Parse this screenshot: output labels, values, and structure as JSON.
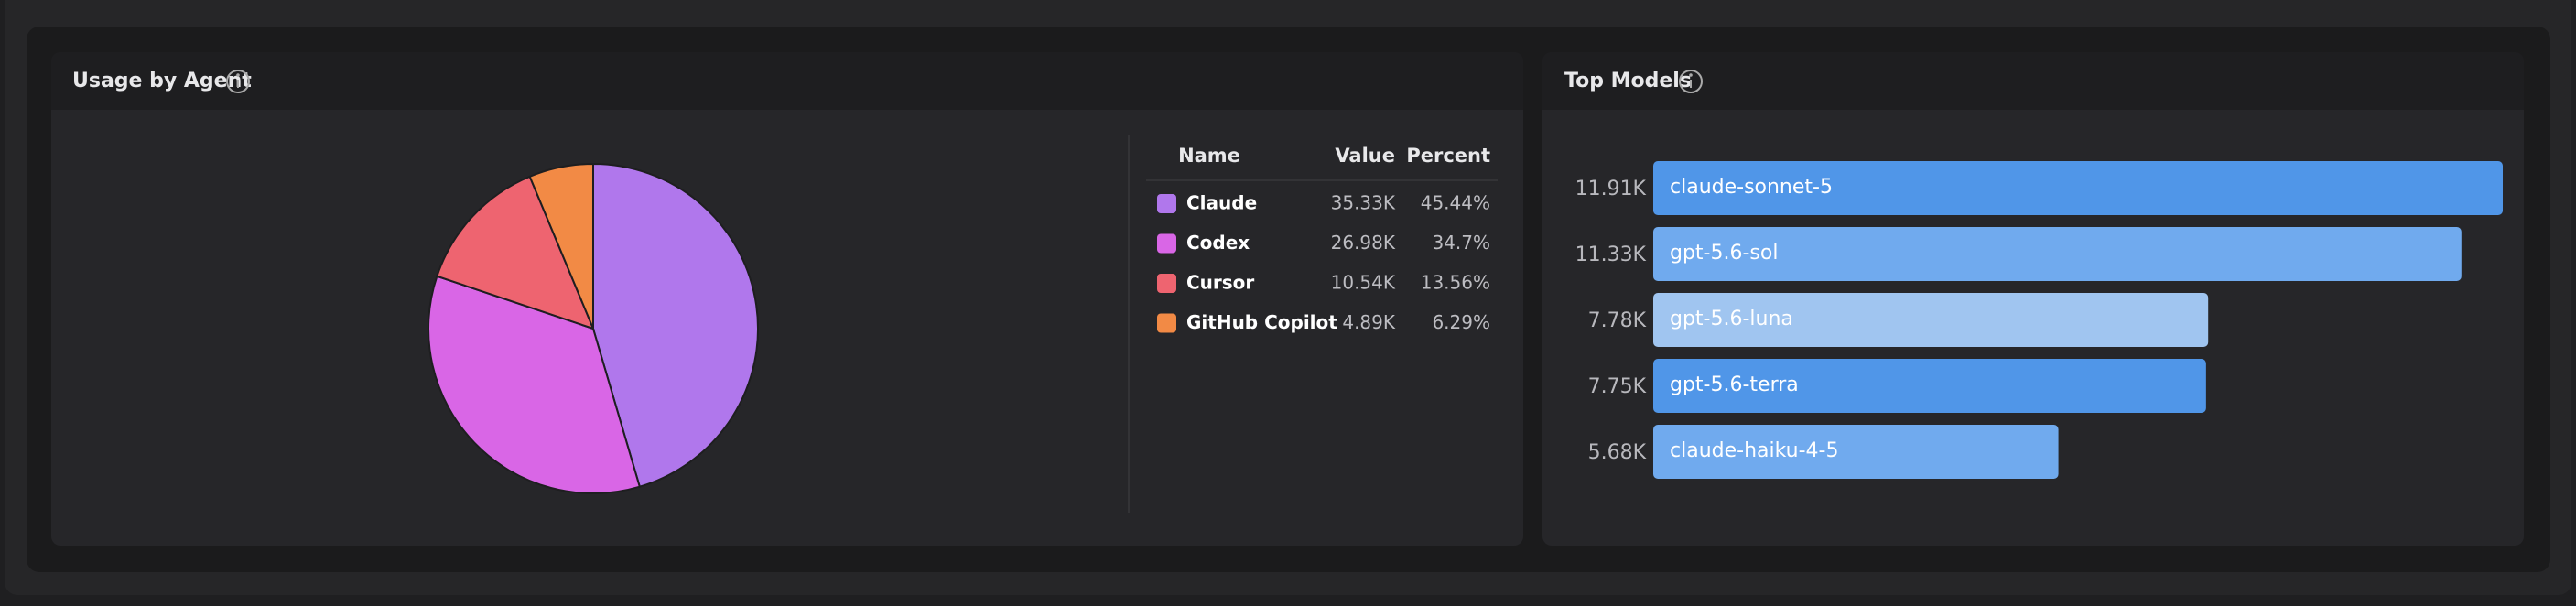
{
  "chart_data": [
    {
      "type": "pie",
      "title": "Usage by Agent",
      "table_headers": [
        "Name",
        "Value",
        "Percent"
      ],
      "categories": [
        "Claude",
        "Codex",
        "Cursor",
        "GitHub Copilot"
      ],
      "values": [
        35330,
        26980,
        10540,
        4890
      ],
      "value_labels": [
        "35.33K",
        "26.98K",
        "10.54K",
        "4.89K"
      ],
      "percents": [
        45.44,
        34.7,
        13.56,
        6.29
      ],
      "percent_labels": [
        "45.44%",
        "34.7%",
        "13.56%",
        "6.29%"
      ],
      "colors": [
        "#b077ec",
        "#d966e6",
        "#ee6470",
        "#f28a45"
      ]
    },
    {
      "type": "hbar",
      "title": "Top Models",
      "categories": [
        "claude-sonnet-5",
        "gpt-5.6-sol",
        "gpt-5.6-luna",
        "gpt-5.6-terra",
        "claude-haiku-4-5"
      ],
      "values": [
        11910,
        11330,
        7780,
        7750,
        5680
      ],
      "value_labels": [
        "11.91K",
        "11.33K",
        "7.78K",
        "7.75K",
        "5.68K"
      ],
      "colors": [
        "#5096e8",
        "#70aaee",
        "#a0c5f0",
        "#5096e8",
        "#70aaee"
      ]
    }
  ]
}
